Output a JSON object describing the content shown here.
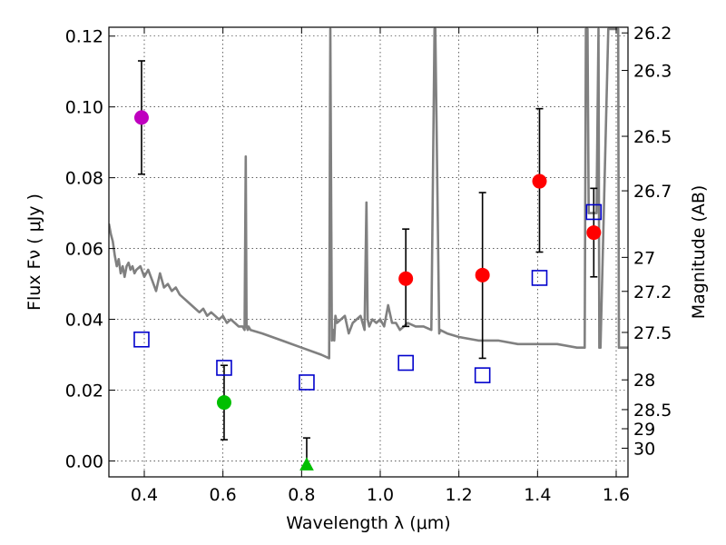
{
  "chart_data": {
    "type": "scatter",
    "title": "",
    "xlabel": "Wavelength  λ (μm)",
    "ylabel": "Flux  Fν  ( μJy )",
    "ylabel_right": "Magnitude (AB)",
    "xlim": [
      0.31,
      1.63
    ],
    "ylim": [
      -0.0045,
      0.1225
    ],
    "grid": true,
    "x_ticks": [
      0.4,
      0.6,
      0.8,
      1.0,
      1.2,
      1.4,
      1.6
    ],
    "x_tick_labels": [
      "0.4",
      "0.6",
      "0.8",
      "1.0",
      "1.2",
      "1.4",
      "1.6"
    ],
    "y_ticks": [
      0.0,
      0.02,
      0.04,
      0.06,
      0.08,
      0.1,
      0.12
    ],
    "y_tick_labels": [
      "0.00",
      "0.02",
      "0.04",
      "0.06",
      "0.08",
      "0.10",
      "0.12"
    ],
    "mag_ticks": [
      {
        "label": "26.2",
        "flux": 0.1209
      },
      {
        "label": "26.3",
        "flux": 0.1103
      },
      {
        "label": "26.5",
        "flux": 0.0917
      },
      {
        "label": "26.7",
        "flux": 0.0763
      },
      {
        "label": "27",
        "flux": 0.0575
      },
      {
        "label": "27.2",
        "flux": 0.0479
      },
      {
        "label": "27.5",
        "flux": 0.0363
      },
      {
        "label": "28",
        "flux": 0.0229
      },
      {
        "label": "28.5",
        "flux": 0.0145
      },
      {
        "label": "29",
        "flux": 0.0091
      },
      {
        "label": "30",
        "flux": 0.0036
      }
    ],
    "series": [
      {
        "name": "Model SED",
        "kind": "line",
        "color": "#808080",
        "x": [
          0.31,
          0.315,
          0.32,
          0.325,
          0.33,
          0.335,
          0.34,
          0.345,
          0.35,
          0.355,
          0.36,
          0.365,
          0.37,
          0.375,
          0.38,
          0.39,
          0.4,
          0.41,
          0.42,
          0.43,
          0.44,
          0.45,
          0.46,
          0.47,
          0.48,
          0.49,
          0.5,
          0.51,
          0.52,
          0.53,
          0.54,
          0.55,
          0.56,
          0.57,
          0.58,
          0.59,
          0.6,
          0.61,
          0.62,
          0.63,
          0.64,
          0.65,
          0.655,
          0.658,
          0.66,
          0.663,
          0.665,
          0.67,
          0.7,
          0.75,
          0.8,
          0.85,
          0.87,
          0.873,
          0.877,
          0.88,
          0.883,
          0.886,
          0.89,
          0.9,
          0.91,
          0.92,
          0.93,
          0.94,
          0.95,
          0.96,
          0.965,
          0.968,
          0.972,
          0.98,
          0.99,
          1.0,
          1.01,
          1.02,
          1.03,
          1.04,
          1.05,
          1.07,
          1.09,
          1.11,
          1.13,
          1.138,
          1.14,
          1.15,
          1.152,
          1.17,
          1.2,
          1.25,
          1.3,
          1.35,
          1.4,
          1.45,
          1.5,
          1.52,
          1.523,
          1.527,
          1.53,
          1.55,
          1.555,
          1.557,
          1.56,
          1.58,
          1.59,
          1.6,
          1.605,
          1.607,
          1.61,
          1.63
        ],
        "y": [
          0.067,
          0.064,
          0.062,
          0.058,
          0.055,
          0.057,
          0.053,
          0.055,
          0.052,
          0.055,
          0.056,
          0.054,
          0.055,
          0.053,
          0.054,
          0.055,
          0.052,
          0.054,
          0.051,
          0.048,
          0.053,
          0.049,
          0.05,
          0.048,
          0.049,
          0.047,
          0.046,
          0.045,
          0.044,
          0.043,
          0.042,
          0.043,
          0.041,
          0.042,
          0.041,
          0.04,
          0.041,
          0.039,
          0.04,
          0.039,
          0.038,
          0.038,
          0.037,
          0.086,
          0.038,
          0.037,
          0.038,
          0.037,
          0.036,
          0.034,
          0.032,
          0.03,
          0.029,
          0.122,
          0.034,
          0.037,
          0.034,
          0.041,
          0.039,
          0.04,
          0.041,
          0.036,
          0.039,
          0.04,
          0.041,
          0.037,
          0.073,
          0.04,
          0.038,
          0.04,
          0.039,
          0.04,
          0.038,
          0.044,
          0.039,
          0.039,
          0.037,
          0.039,
          0.038,
          0.038,
          0.037,
          0.122,
          0.122,
          0.036,
          0.037,
          0.036,
          0.035,
          0.034,
          0.034,
          0.033,
          0.033,
          0.033,
          0.032,
          0.032,
          0.122,
          0.122,
          0.07,
          0.07,
          0.122,
          0.032,
          0.032,
          0.122,
          0.122,
          0.122,
          0.122,
          0.032,
          0.032,
          0.032
        ]
      },
      {
        "name": "Observed (magenta)",
        "kind": "point",
        "color": "#bf00bf",
        "x": [
          0.393
        ],
        "y": [
          0.097
        ],
        "err_low": [
          0.081
        ],
        "err_high": [
          0.113
        ]
      },
      {
        "name": "Observed (green)",
        "kind": "point",
        "color": "#00bf00",
        "x": [
          0.603
        ],
        "y": [
          0.0165
        ],
        "err_low": [
          0.006
        ],
        "err_high": [
          0.027
        ]
      },
      {
        "name": "Upper limit (green triangle)",
        "kind": "triangle",
        "color": "#00bf00",
        "x": [
          0.813
        ],
        "y": [
          -0.001
        ],
        "err_low": [
          -0.001
        ],
        "err_high": [
          0.0065
        ]
      },
      {
        "name": "Observed (red)",
        "kind": "point",
        "color": "#ff0000",
        "x": [
          1.065,
          1.26,
          1.405,
          1.543
        ],
        "y": [
          0.0515,
          0.0525,
          0.079,
          0.0645
        ],
        "err_low": [
          0.038,
          0.029,
          0.059,
          0.052
        ],
        "err_high": [
          0.0655,
          0.0758,
          0.0995,
          0.077
        ]
      },
      {
        "name": "Model photometry",
        "kind": "open-square",
        "color": "#0000cc",
        "x": [
          0.393,
          0.603,
          0.813,
          1.065,
          1.26,
          1.405,
          1.543
        ],
        "y": [
          0.0343,
          0.0263,
          0.0222,
          0.0277,
          0.0242,
          0.0517,
          0.0703
        ]
      }
    ]
  }
}
